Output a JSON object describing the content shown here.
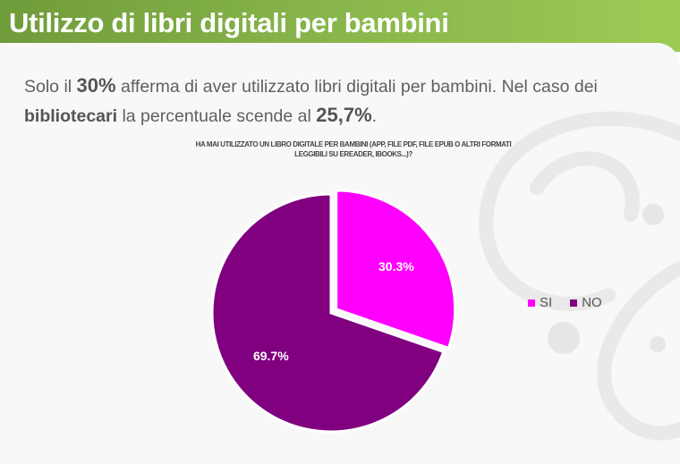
{
  "slide": {
    "title": "Utilizzo di libri digitali per bambini"
  },
  "intro": {
    "p1": "Solo il ",
    "p2": "30%",
    "p3": " afferma di aver utilizzato libri digitali per bambini. Nel caso dei ",
    "p4": "bibliotecari",
    "p5": " la percentuale scende al ",
    "p6": "25,7%",
    "p7": "."
  },
  "chart_data": {
    "type": "pie",
    "title_line1": "HA MAI UTILIZZATO UN LIBRO DIGITALE PER BAMBINI (APP, FILE PDF, FILE EPUB O ALTRI FORMATI",
    "title_line2": "LEGGIBILI SU EREADER, IBOOKS...)?",
    "legend_position": "right",
    "categories": [
      "SI",
      "NO"
    ],
    "values": [
      30.3,
      69.7
    ],
    "labels": [
      "30.3%",
      "69.7%"
    ],
    "colors": [
      "#ff00ff",
      "#800080"
    ],
    "exploded": "SI"
  }
}
